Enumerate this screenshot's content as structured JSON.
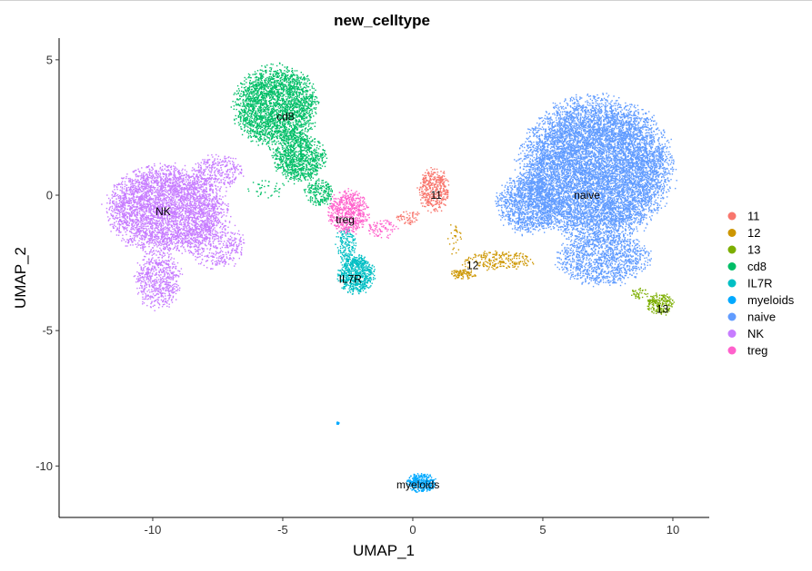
{
  "chart_data": {
    "type": "scatter",
    "title": "new_celltype",
    "xlabel": "UMAP_1",
    "ylabel": "UMAP_2",
    "xlim": [
      -13.6,
      11.4
    ],
    "ylim": [
      -11.9,
      5.8
    ],
    "xticks": [
      -10,
      -5,
      0,
      5,
      10
    ],
    "xtick_labels": [
      "-10",
      "-5",
      "0",
      "5",
      "10"
    ],
    "yticks": [
      5,
      0,
      -5,
      -10
    ],
    "ytick_labels": [
      "5",
      "0",
      "-5",
      "-10"
    ],
    "grid": false,
    "legend_position": "right",
    "series": [
      {
        "name": "11",
        "color": "#F8766D",
        "label": "11",
        "label_pos": [
          0.9,
          0.0
        ],
        "regions": [
          {
            "cx": 0.8,
            "cy": 0.2,
            "rx": 0.6,
            "ry": 0.8,
            "n": 420
          },
          {
            "cx": -0.2,
            "cy": -0.8,
            "rx": 0.5,
            "ry": 0.3,
            "n": 60
          }
        ]
      },
      {
        "name": "12",
        "color": "#CD9600",
        "label": "12",
        "label_pos": [
          2.3,
          -2.6
        ],
        "regions": [
          {
            "cx": 3.2,
            "cy": -2.4,
            "rx": 1.5,
            "ry": 0.35,
            "n": 230
          },
          {
            "cx": 1.9,
            "cy": -2.9,
            "rx": 0.5,
            "ry": 0.2,
            "n": 90
          },
          {
            "cx": 1.6,
            "cy": -1.6,
            "rx": 0.3,
            "ry": 0.6,
            "n": 30
          }
        ]
      },
      {
        "name": "13",
        "color": "#7CAE00",
        "label": "13",
        "label_pos": [
          9.6,
          -4.2
        ],
        "regions": [
          {
            "cx": 9.5,
            "cy": -4.0,
            "rx": 0.55,
            "ry": 0.4,
            "n": 200
          },
          {
            "cx": 8.7,
            "cy": -3.6,
            "rx": 0.35,
            "ry": 0.2,
            "n": 40
          }
        ]
      },
      {
        "name": "cd8",
        "color": "#00BE67",
        "label": "cd8",
        "label_pos": [
          -4.9,
          2.9
        ],
        "regions": [
          {
            "cx": -5.3,
            "cy": 3.3,
            "rx": 1.6,
            "ry": 1.5,
            "n": 2600
          },
          {
            "cx": -4.4,
            "cy": 1.4,
            "rx": 1.0,
            "ry": 0.9,
            "n": 900
          },
          {
            "cx": -3.6,
            "cy": 0.1,
            "rx": 0.6,
            "ry": 0.5,
            "n": 200
          },
          {
            "cx": -5.6,
            "cy": 0.3,
            "rx": 0.9,
            "ry": 0.4,
            "n": 40
          }
        ]
      },
      {
        "name": "IL7R",
        "color": "#00BFC4",
        "label": "IL7R",
        "label_pos": [
          -2.4,
          -3.1
        ],
        "regions": [
          {
            "cx": -2.2,
            "cy": -2.9,
            "rx": 0.7,
            "ry": 0.7,
            "n": 700
          },
          {
            "cx": -2.6,
            "cy": -1.8,
            "rx": 0.4,
            "ry": 0.6,
            "n": 150
          }
        ]
      },
      {
        "name": "myeloids",
        "color": "#00A9FF",
        "label": "myeloids",
        "label_pos": [
          0.2,
          -10.7
        ],
        "regions": [
          {
            "cx": 0.3,
            "cy": -10.6,
            "rx": 0.55,
            "ry": 0.35,
            "n": 320
          },
          {
            "cx": -2.9,
            "cy": -8.4,
            "rx": 0.06,
            "ry": 0.06,
            "n": 12
          }
        ]
      },
      {
        "name": "naive",
        "color": "#619CFF",
        "label": "naive",
        "label_pos": [
          6.7,
          0.0
        ],
        "regions": [
          {
            "cx": 7.0,
            "cy": 1.0,
            "rx": 2.9,
            "ry": 2.6,
            "n": 9500
          },
          {
            "cx": 4.4,
            "cy": -0.3,
            "rx": 1.2,
            "ry": 1.1,
            "n": 1200
          },
          {
            "cx": 7.3,
            "cy": -2.3,
            "rx": 1.8,
            "ry": 1.0,
            "n": 1300
          }
        ]
      },
      {
        "name": "NK",
        "color": "#C77CFF",
        "label": "NK",
        "label_pos": [
          -9.6,
          -0.6
        ],
        "regions": [
          {
            "cx": -9.5,
            "cy": -0.5,
            "rx": 2.3,
            "ry": 1.6,
            "n": 3800
          },
          {
            "cx": -9.8,
            "cy": -3.1,
            "rx": 0.9,
            "ry": 1.1,
            "n": 600
          },
          {
            "cx": -7.6,
            "cy": -1.8,
            "rx": 1.1,
            "ry": 0.9,
            "n": 400
          },
          {
            "cx": -7.5,
            "cy": 0.9,
            "rx": 1.0,
            "ry": 0.6,
            "n": 300
          }
        ]
      },
      {
        "name": "treg",
        "color": "#FF61CC",
        "label": "treg",
        "label_pos": [
          -2.6,
          -0.9
        ],
        "regions": [
          {
            "cx": -2.5,
            "cy": -0.6,
            "rx": 0.8,
            "ry": 0.8,
            "n": 600
          },
          {
            "cx": -1.2,
            "cy": -1.2,
            "rx": 0.6,
            "ry": 0.4,
            "n": 80
          }
        ]
      }
    ]
  }
}
